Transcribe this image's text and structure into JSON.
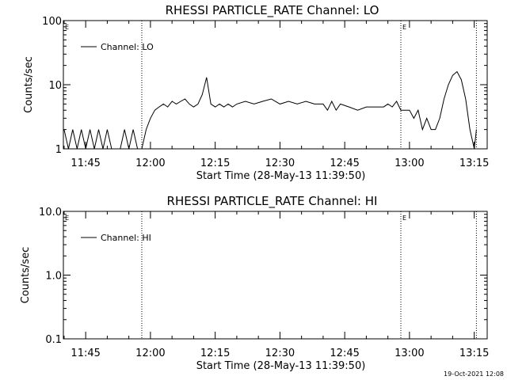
{
  "chart_data": [
    {
      "type": "line",
      "title": "RHESSI PARTICLE_RATE Channel: LO",
      "xlabel": "Start Time (28-May-13 11:39:50)",
      "ylabel": "Counts/sec",
      "yscale": "log",
      "ylim": [
        1,
        100
      ],
      "yticks": [
        "1",
        "10",
        "100"
      ],
      "xlim": [
        "11:39:50",
        "13:18"
      ],
      "xticks": [
        "11:45",
        "12:00",
        "12:15",
        "12:30",
        "12:45",
        "13:00",
        "13:15"
      ],
      "legend": {
        "position": "top-left",
        "entries": [
          "Channel: LO"
        ]
      },
      "markers": [
        {
          "time": "11:39:50",
          "label": "E"
        },
        {
          "time": "11:58",
          "label": ""
        },
        {
          "time": "12:58",
          "label": "E"
        },
        {
          "time": "13:15.5",
          "label": ""
        }
      ],
      "series": [
        {
          "name": "Channel: LO",
          "x": [
            "11:40",
            "11:41",
            "11:42",
            "11:43",
            "11:44",
            "11:45",
            "11:46",
            "11:47",
            "11:48",
            "11:49",
            "11:50",
            "11:51",
            "11:52",
            "11:53",
            "11:54",
            "11:55",
            "11:56",
            "11:57",
            "11:58",
            "11:59",
            "12:00",
            "12:01",
            "12:02",
            "12:03",
            "12:04",
            "12:05",
            "12:06",
            "12:07",
            "12:08",
            "12:09",
            "12:10",
            "12:11",
            "12:12",
            "12:13",
            "12:14",
            "12:15",
            "12:16",
            "12:17",
            "12:18",
            "12:19",
            "12:20",
            "12:22",
            "12:24",
            "12:26",
            "12:28",
            "12:30",
            "12:32",
            "12:34",
            "12:36",
            "12:38",
            "12:40",
            "12:41",
            "12:42",
            "12:43",
            "12:44",
            "12:46",
            "12:48",
            "12:50",
            "12:52",
            "12:54",
            "12:55",
            "12:56",
            "12:57",
            "12:58",
            "12:59",
            "13:00",
            "13:01",
            "13:02",
            "13:03",
            "13:04",
            "13:05",
            "13:06",
            "13:07",
            "13:08",
            "13:09",
            "13:10",
            "13:11",
            "13:12",
            "13:13",
            "13:14",
            "13:15",
            "13:15.5"
          ],
          "values": [
            2,
            1,
            2,
            1,
            2,
            1,
            2,
            1,
            2,
            1,
            2,
            1,
            1,
            1,
            2,
            1,
            2,
            1,
            1,
            2,
            3,
            4,
            4.5,
            5,
            4.5,
            5.5,
            5,
            5.5,
            6,
            5,
            4.5,
            5,
            7,
            13,
            5,
            4.5,
            5,
            4.5,
            5,
            4.5,
            5,
            5.5,
            5,
            5.5,
            6,
            5,
            5.5,
            5,
            5.5,
            5,
            5,
            4,
            5.5,
            4,
            5,
            4.5,
            4,
            4.5,
            4.5,
            4.5,
            5,
            4.5,
            5.5,
            4,
            4,
            4,
            3,
            4,
            2,
            3,
            2,
            2,
            3,
            6,
            10,
            14,
            16,
            12,
            6,
            2,
            1,
            2
          ]
        }
      ]
    },
    {
      "type": "line",
      "title": "RHESSI PARTICLE_RATE Channel: HI",
      "xlabel": "Start Time (28-May-13 11:39:50)",
      "ylabel": "Counts/sec",
      "yscale": "log",
      "ylim": [
        0.1,
        10
      ],
      "yticks": [
        "0.1",
        "1.0",
        "10.0"
      ],
      "xlim": [
        "11:39:50",
        "13:18"
      ],
      "xticks": [
        "11:45",
        "12:00",
        "12:15",
        "12:30",
        "12:45",
        "13:00",
        "13:15"
      ],
      "legend": {
        "position": "top-left",
        "entries": [
          "Channel: HI"
        ]
      },
      "markers": [
        {
          "time": "11:39:50",
          "label": "E"
        },
        {
          "time": "11:58",
          "label": ""
        },
        {
          "time": "12:58",
          "label": "E"
        },
        {
          "time": "13:15.5",
          "label": ""
        }
      ],
      "series": [
        {
          "name": "Channel: HI",
          "x": [],
          "values": []
        }
      ]
    }
  ],
  "footer": {
    "timestamp": "19-Oct-2021 12:08"
  }
}
